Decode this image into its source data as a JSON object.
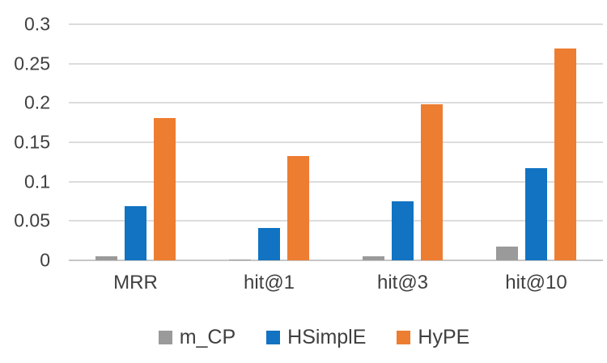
{
  "chart_data": {
    "type": "bar",
    "title": "",
    "xlabel": "",
    "ylabel": "",
    "categories": [
      "MRR",
      "hit@1",
      "hit@3",
      "hit@10"
    ],
    "series": [
      {
        "name": "m_CP",
        "color": "#9A9A9A",
        "values": [
          0.005,
          0.001,
          0.005,
          0.017
        ]
      },
      {
        "name": "HSimplE",
        "color": "#1173C2",
        "values": [
          0.069,
          0.041,
          0.075,
          0.117
        ]
      },
      {
        "name": "HyPE",
        "color": "#ED7D31",
        "values": [
          0.181,
          0.133,
          0.198,
          0.269
        ]
      }
    ],
    "ylim": [
      0,
      0.3
    ],
    "ytick_labels": [
      "0",
      "0.05",
      "0.1",
      "0.15",
      "0.2",
      "0.25",
      "0.3"
    ],
    "grid": true,
    "legend_position": "bottom"
  },
  "colors": {
    "background": "#FFFFFF",
    "gridline": "#DCDCDC",
    "baseline": "#C7C7C7",
    "axis_text": "#404040"
  }
}
